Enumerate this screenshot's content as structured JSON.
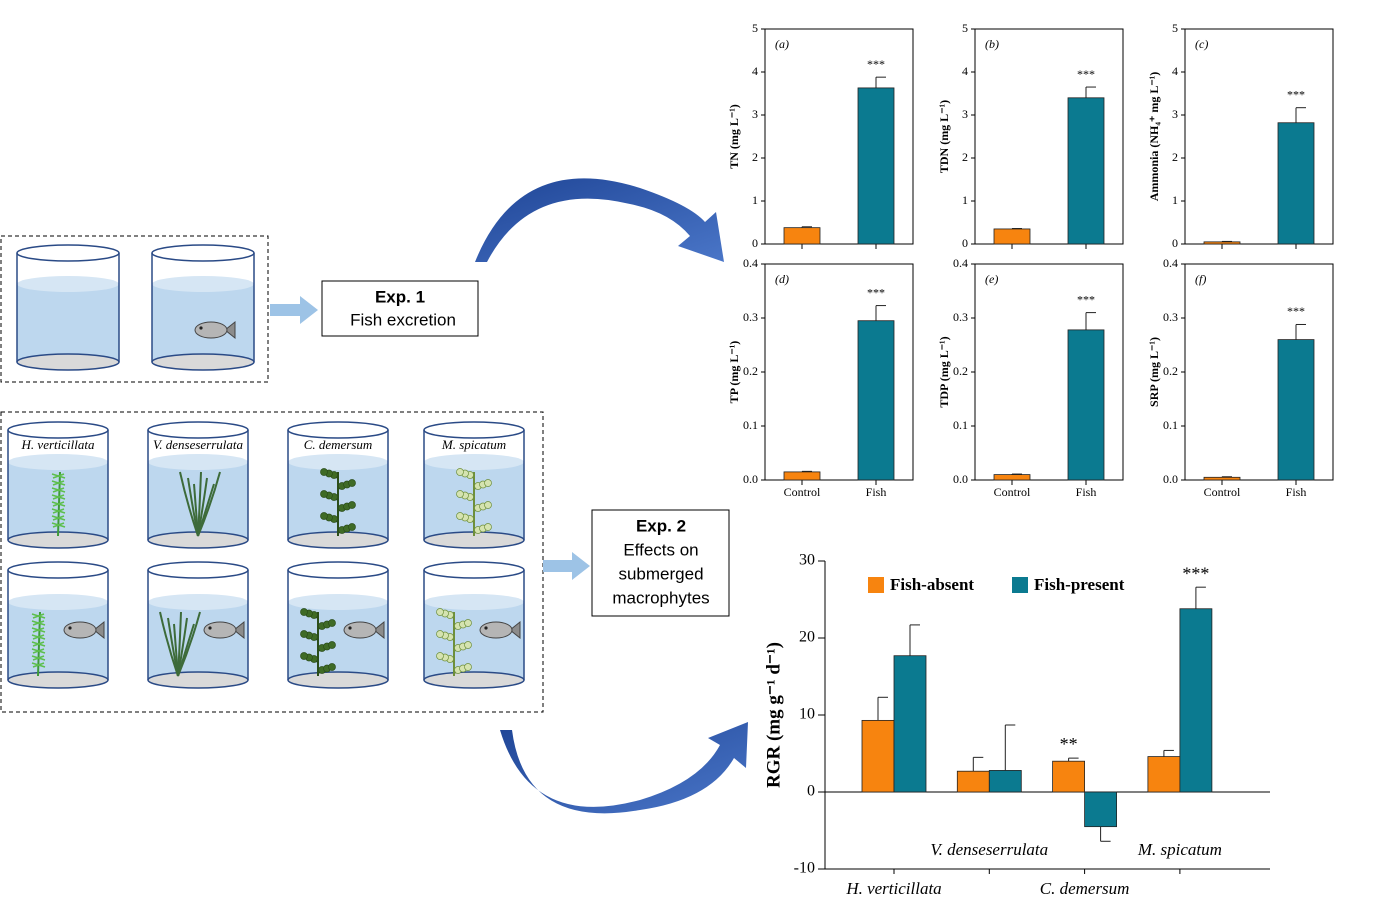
{
  "diagram": {
    "exp1": {
      "title": "Exp. 1",
      "subtitle": "Fish excretion"
    },
    "exp2": {
      "title": "Exp. 2",
      "lines": [
        "Effects on",
        "submerged",
        "macrophytes"
      ]
    },
    "species": [
      "H. verticillata",
      "V. denseserrulata",
      "C. demersum",
      "M. spicatum"
    ]
  },
  "chart_data": [
    {
      "type": "bar",
      "panel": "(a)",
      "ylabel": "TN (mg L⁻¹)",
      "categories": [
        null,
        null
      ],
      "values": [
        0.38,
        3.63
      ],
      "errors": [
        0.02,
        0.25
      ],
      "significance": [
        null,
        "***"
      ],
      "colors": [
        "#f7840f",
        "#0b7a90"
      ],
      "ylim": [
        0,
        5
      ],
      "yticks": [
        0,
        1,
        2,
        3,
        4,
        5
      ]
    },
    {
      "type": "bar",
      "panel": "(b)",
      "ylabel": "TDN (mg L⁻¹)",
      "categories": [
        null,
        null
      ],
      "values": [
        0.35,
        3.4
      ],
      "errors": [
        0.01,
        0.25
      ],
      "significance": [
        null,
        "***"
      ],
      "colors": [
        "#f7840f",
        "#0b7a90"
      ],
      "ylim": [
        0,
        5
      ],
      "yticks": [
        0,
        1,
        2,
        3,
        4,
        5
      ]
    },
    {
      "type": "bar",
      "panel": "(c)",
      "ylabel": "Ammonia (NH₄⁺ mg L⁻¹)",
      "categories": [
        null,
        null
      ],
      "values": [
        0.05,
        2.82
      ],
      "errors": [
        0.01,
        0.35
      ],
      "significance": [
        null,
        "***"
      ],
      "colors": [
        "#f7840f",
        "#0b7a90"
      ],
      "ylim": [
        0,
        5
      ],
      "yticks": [
        0,
        1,
        2,
        3,
        4,
        5
      ]
    },
    {
      "type": "bar",
      "panel": "(d)",
      "ylabel": "TP (mg L⁻¹)",
      "categories": [
        "Control",
        "Fish"
      ],
      "values": [
        0.015,
        0.295
      ],
      "errors": [
        0.001,
        0.028
      ],
      "significance": [
        null,
        "***"
      ],
      "colors": [
        "#f7840f",
        "#0b7a90"
      ],
      "ylim": [
        0,
        0.4
      ],
      "yticks": [
        {
          "value": 0,
          "label": "0.0"
        },
        0.1,
        0.2,
        0.3,
        0.4
      ]
    },
    {
      "type": "bar",
      "panel": "(e)",
      "ylabel": "TDP (mg L⁻¹)",
      "categories": [
        "Control",
        "Fish"
      ],
      "values": [
        0.01,
        0.278
      ],
      "errors": [
        0.001,
        0.032
      ],
      "significance": [
        null,
        "***"
      ],
      "colors": [
        "#f7840f",
        "#0b7a90"
      ],
      "ylim": [
        0,
        0.4
      ],
      "yticks": [
        {
          "value": 0,
          "label": "0.0"
        },
        0.1,
        0.2,
        0.3,
        0.4
      ]
    },
    {
      "type": "bar",
      "panel": "(f)",
      "ylabel": "SRP (mg L⁻¹)",
      "categories": [
        "Control",
        "Fish"
      ],
      "values": [
        0.005,
        0.26
      ],
      "errors": [
        0.001,
        0.028
      ],
      "significance": [
        null,
        "***"
      ],
      "colors": [
        "#f7840f",
        "#0b7a90"
      ],
      "ylim": [
        0,
        0.4
      ],
      "yticks": [
        {
          "value": 0,
          "label": "0.0"
        },
        0.1,
        0.2,
        0.3,
        0.4
      ]
    },
    {
      "type": "bar",
      "ylabel": "RGR (mg g⁻¹ d⁻¹)",
      "categories": [
        "H. verticillata",
        "V. denseserrulata",
        "C. demersum",
        "M. spicatum"
      ],
      "series": [
        {
          "name": "Fish-absent",
          "color": "#f7840f",
          "values": [
            9.3,
            2.7,
            4.0,
            4.6
          ],
          "errors": [
            3.0,
            1.8,
            0.4,
            0.8
          ],
          "significance": [
            null,
            null,
            "**",
            null
          ]
        },
        {
          "name": "Fish-present",
          "color": "#0b7a90",
          "values": [
            17.7,
            2.8,
            -4.5,
            23.8
          ],
          "errors": [
            4.0,
            5.9,
            1.9,
            2.8
          ],
          "significance": [
            null,
            null,
            null,
            "***"
          ]
        }
      ],
      "ylim": [
        -10,
        30
      ],
      "yticks": [
        -10,
        0,
        10,
        20,
        30
      ]
    }
  ]
}
